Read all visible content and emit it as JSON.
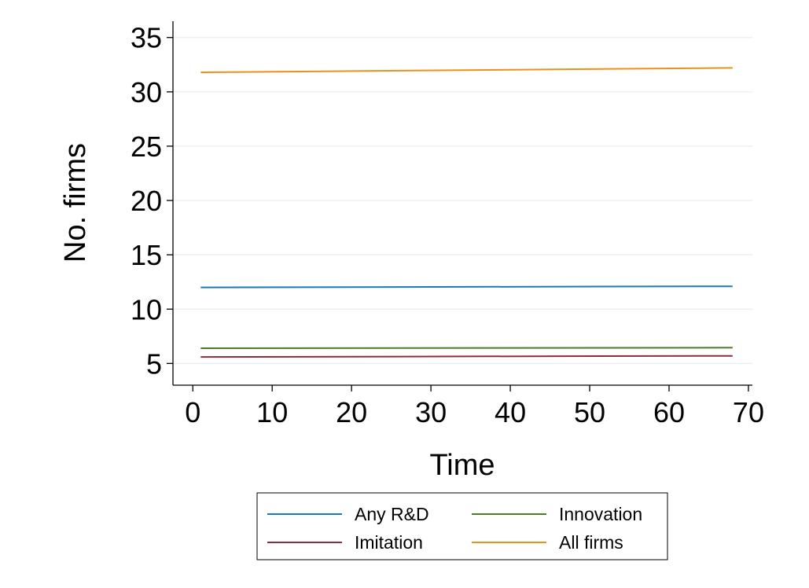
{
  "chart_data": {
    "type": "line",
    "xlabel": "Time",
    "ylabel": "No. firms",
    "xlim": [
      -2.5,
      70.5
    ],
    "ylim": [
      3,
      36.5
    ],
    "xticks": [
      0,
      10,
      20,
      30,
      40,
      50,
      60,
      70
    ],
    "yticks": [
      5,
      10,
      15,
      20,
      25,
      30,
      35
    ],
    "grid": true,
    "legend_position": "bottom",
    "series": [
      {
        "name": "Any R&D",
        "color": "#1a7ab5",
        "x": [
          1,
          68
        ],
        "y": [
          12.0,
          12.1
        ]
      },
      {
        "name": "Imitation",
        "color": "#8b2b3e",
        "x": [
          1,
          68
        ],
        "y": [
          5.6,
          5.7
        ]
      },
      {
        "name": "Innovation",
        "color": "#4f7a2a",
        "x": [
          1,
          68
        ],
        "y": [
          6.4,
          6.45
        ]
      },
      {
        "name": "All firms",
        "color": "#e8921a",
        "x": [
          1,
          68
        ],
        "y": [
          31.8,
          32.2
        ]
      }
    ]
  }
}
